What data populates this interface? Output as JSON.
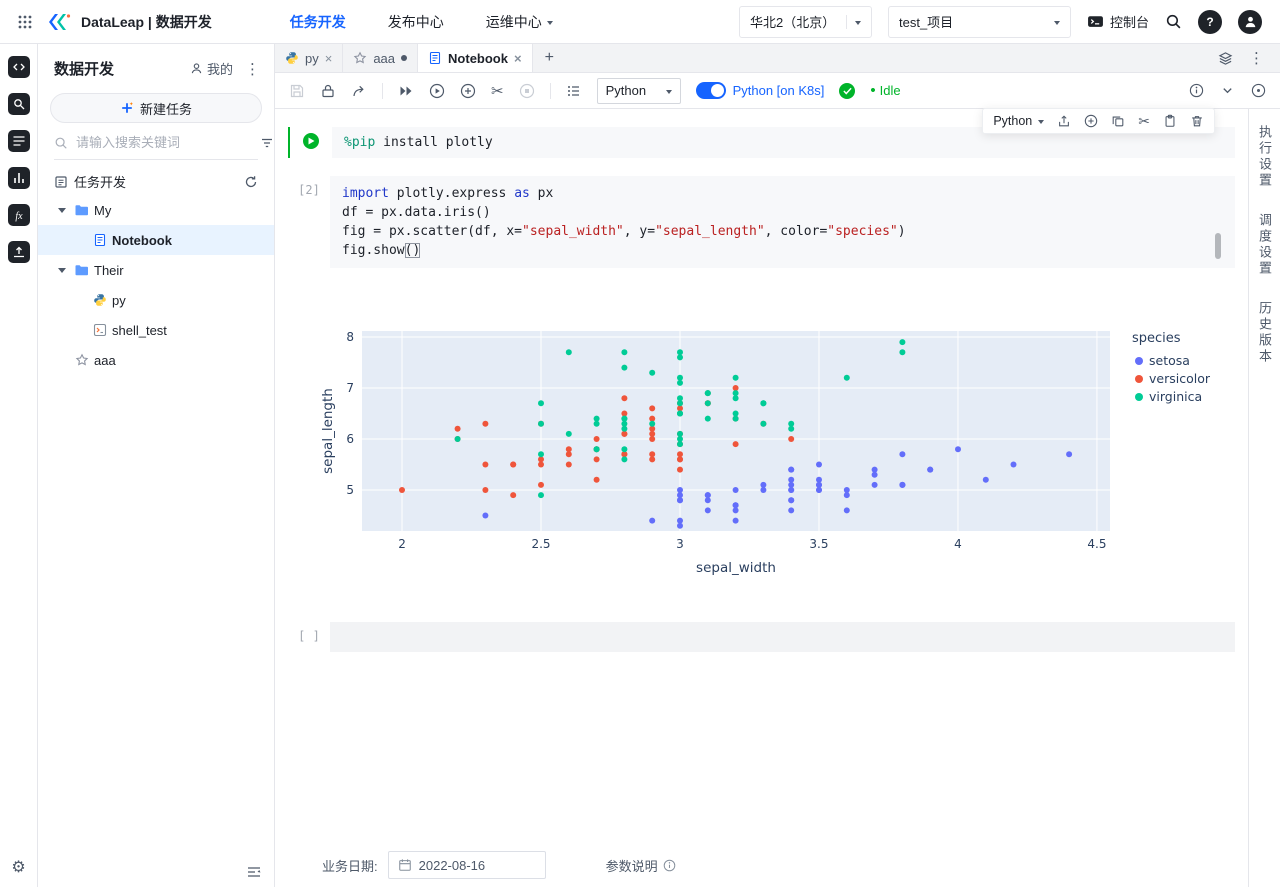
{
  "icons": {
    "kebab": "⋮",
    "close": "×",
    "plus": "+",
    "scissors": "✂",
    "gear": "⚙"
  },
  "topbar": {
    "brand": "DataLeap | 数据开发",
    "nav": [
      {
        "label": "任务开发"
      },
      {
        "label": "发布中心"
      },
      {
        "label": "运维中心"
      }
    ],
    "region": "华北2（北京）",
    "project": "test_项目",
    "console_label": "控制台"
  },
  "sidebar": {
    "title": "数据开发",
    "mine_label": "我的",
    "new_task_label": "新建任务",
    "search_placeholder": "请输入搜索关键词",
    "section_label": "任务开发",
    "tree": [
      {
        "label": "My",
        "icon": "folder",
        "level": 0,
        "expanded": true
      },
      {
        "label": "Notebook",
        "icon": "notebook",
        "level": 1,
        "selected": true
      },
      {
        "label": "Their",
        "icon": "folder",
        "level": 0,
        "expanded": true
      },
      {
        "label": "py",
        "icon": "python",
        "level": 1
      },
      {
        "label": "shell_test",
        "icon": "shell",
        "level": 1
      },
      {
        "label": "aaa",
        "icon": "star",
        "level": 0
      }
    ]
  },
  "tabs": [
    {
      "label": "py"
    },
    {
      "label": "aaa"
    },
    {
      "label": "Notebook"
    }
  ],
  "toolbar": {
    "kernel": "Python",
    "k8s_label": "Python [on K8s]",
    "status": "Idle"
  },
  "cell_toolbar": {
    "language": "Python"
  },
  "cells": [
    {
      "code": [
        [
          {
            "t": "%pip",
            "c": "magic"
          },
          {
            "t": " install plotly",
            "c": ""
          }
        ]
      ]
    },
    {
      "index": "[2]",
      "code": [
        [
          {
            "t": "import",
            "c": "kw"
          },
          {
            "t": " plotly.express ",
            "c": ""
          },
          {
            "t": "as",
            "c": "kw"
          },
          {
            "t": " px",
            "c": ""
          }
        ],
        [
          {
            "t": "df = px.data.iris()",
            "c": ""
          }
        ],
        [
          {
            "t": "fig = px.scatter(df, x=",
            "c": ""
          },
          {
            "t": "\"sepal_width\"",
            "c": "str"
          },
          {
            "t": ", y=",
            "c": ""
          },
          {
            "t": "\"sepal_length\"",
            "c": "str"
          },
          {
            "t": ", color=",
            "c": ""
          },
          {
            "t": "\"species\"",
            "c": "str"
          },
          {
            "t": ")",
            "c": ""
          }
        ],
        [
          {
            "t": "fig.show",
            "c": ""
          },
          {
            "t": "()",
            "c": "cursor"
          }
        ]
      ]
    },
    {
      "index": "[ ]",
      "code": []
    }
  ],
  "chart_data": {
    "type": "scatter",
    "title": "",
    "xlabel": "sepal_width",
    "ylabel": "sepal_length",
    "legend_title": "species",
    "legend_position": "right",
    "grid": true,
    "plot_bg": "#E5ECF6",
    "x_range": [
      1.856,
      4.547
    ],
    "y_range": [
      4.196,
      8.118
    ],
    "x_ticks": [
      2,
      2.5,
      3,
      3.5,
      4,
      4.5
    ],
    "y_ticks": [
      5,
      6,
      7,
      8
    ],
    "series": [
      {
        "name": "setosa",
        "color": "#636EFA",
        "x": [
          3.5,
          3.0,
          3.2,
          3.1,
          3.6,
          3.9,
          3.4,
          3.4,
          2.9,
          3.1,
          3.7,
          3.4,
          3.0,
          3.0,
          4.0,
          4.4,
          3.9,
          3.5,
          3.8,
          3.8,
          3.4,
          3.7,
          3.6,
          3.3,
          3.4,
          3.0,
          3.4,
          3.5,
          3.4,
          3.2,
          3.1,
          3.4,
          4.1,
          4.2,
          3.1,
          3.2,
          3.5,
          3.6,
          3.0,
          3.4,
          3.5,
          2.3,
          3.2,
          3.5,
          3.8,
          3.0,
          3.8,
          3.2,
          3.7,
          3.3
        ],
        "y": [
          5.1,
          4.9,
          4.7,
          4.6,
          5.0,
          5.4,
          4.6,
          5.0,
          4.4,
          4.9,
          5.4,
          4.8,
          4.8,
          4.3,
          5.8,
          5.7,
          5.4,
          5.1,
          5.7,
          5.1,
          5.4,
          5.1,
          4.6,
          5.1,
          4.8,
          5.0,
          5.0,
          5.2,
          5.2,
          4.7,
          4.8,
          5.4,
          5.2,
          5.5,
          4.9,
          5.0,
          5.5,
          4.9,
          4.4,
          5.1,
          5.0,
          4.5,
          4.4,
          5.0,
          5.1,
          4.8,
          5.1,
          4.6,
          5.3,
          5.0
        ]
      },
      {
        "name": "versicolor",
        "color": "#EF553B",
        "x": [
          3.2,
          3.2,
          3.1,
          2.3,
          2.8,
          2.8,
          3.3,
          2.4,
          2.9,
          2.7,
          2.0,
          3.0,
          2.2,
          2.9,
          2.9,
          3.1,
          3.0,
          2.7,
          2.2,
          2.5,
          3.2,
          2.8,
          2.5,
          2.8,
          2.9,
          3.0,
          2.8,
          3.0,
          2.9,
          2.6,
          2.4,
          2.4,
          2.7,
          2.7,
          3.0,
          3.4,
          3.1,
          2.3,
          3.0,
          2.5,
          2.6,
          3.0,
          2.6,
          2.3,
          2.7,
          3.0,
          2.9,
          2.9,
          2.5,
          2.8
        ],
        "y": [
          7.0,
          6.4,
          6.9,
          5.5,
          6.5,
          5.7,
          6.3,
          4.9,
          6.6,
          5.2,
          5.0,
          5.9,
          6.0,
          6.1,
          5.6,
          6.7,
          5.6,
          5.8,
          6.2,
          5.6,
          5.9,
          6.1,
          6.3,
          6.1,
          6.4,
          6.6,
          6.8,
          6.7,
          6.0,
          5.7,
          5.5,
          5.5,
          5.8,
          6.0,
          5.4,
          6.0,
          6.7,
          6.3,
          5.6,
          5.5,
          5.5,
          6.1,
          5.8,
          5.0,
          5.6,
          5.7,
          5.7,
          6.2,
          5.1,
          5.7
        ]
      },
      {
        "name": "virginica",
        "color": "#00CC96",
        "x": [
          3.3,
          2.7,
          3.0,
          2.9,
          3.0,
          3.0,
          2.5,
          2.9,
          2.5,
          3.6,
          3.2,
          2.7,
          3.0,
          2.5,
          2.8,
          3.2,
          3.0,
          3.8,
          2.6,
          2.2,
          3.2,
          2.8,
          2.8,
          2.7,
          3.3,
          3.2,
          2.8,
          3.0,
          2.8,
          3.0,
          2.8,
          3.8,
          2.8,
          2.8,
          2.6,
          3.0,
          3.4,
          3.1,
          3.0,
          3.1,
          3.1,
          3.1,
          2.7,
          3.2,
          3.3,
          3.0,
          2.5,
          3.0,
          3.4,
          3.0
        ],
        "y": [
          6.3,
          5.8,
          7.1,
          6.3,
          6.5,
          7.6,
          4.9,
          7.3,
          6.7,
          7.2,
          6.5,
          6.4,
          6.8,
          5.7,
          5.8,
          6.4,
          6.5,
          7.7,
          7.7,
          6.0,
          6.9,
          5.6,
          7.7,
          6.3,
          6.7,
          7.2,
          6.2,
          6.1,
          6.4,
          7.2,
          7.4,
          7.9,
          6.4,
          6.3,
          6.1,
          7.7,
          6.3,
          6.4,
          6.0,
          6.9,
          6.7,
          6.9,
          5.8,
          6.8,
          6.7,
          6.7,
          6.3,
          6.5,
          6.2,
          5.9
        ]
      }
    ]
  },
  "right_tabs": [
    "执行设置",
    "调度设置",
    "历史版本"
  ],
  "bottombar": {
    "date_label": "业务日期:",
    "date_value": "2022-08-16",
    "params_label": "参数说明"
  }
}
